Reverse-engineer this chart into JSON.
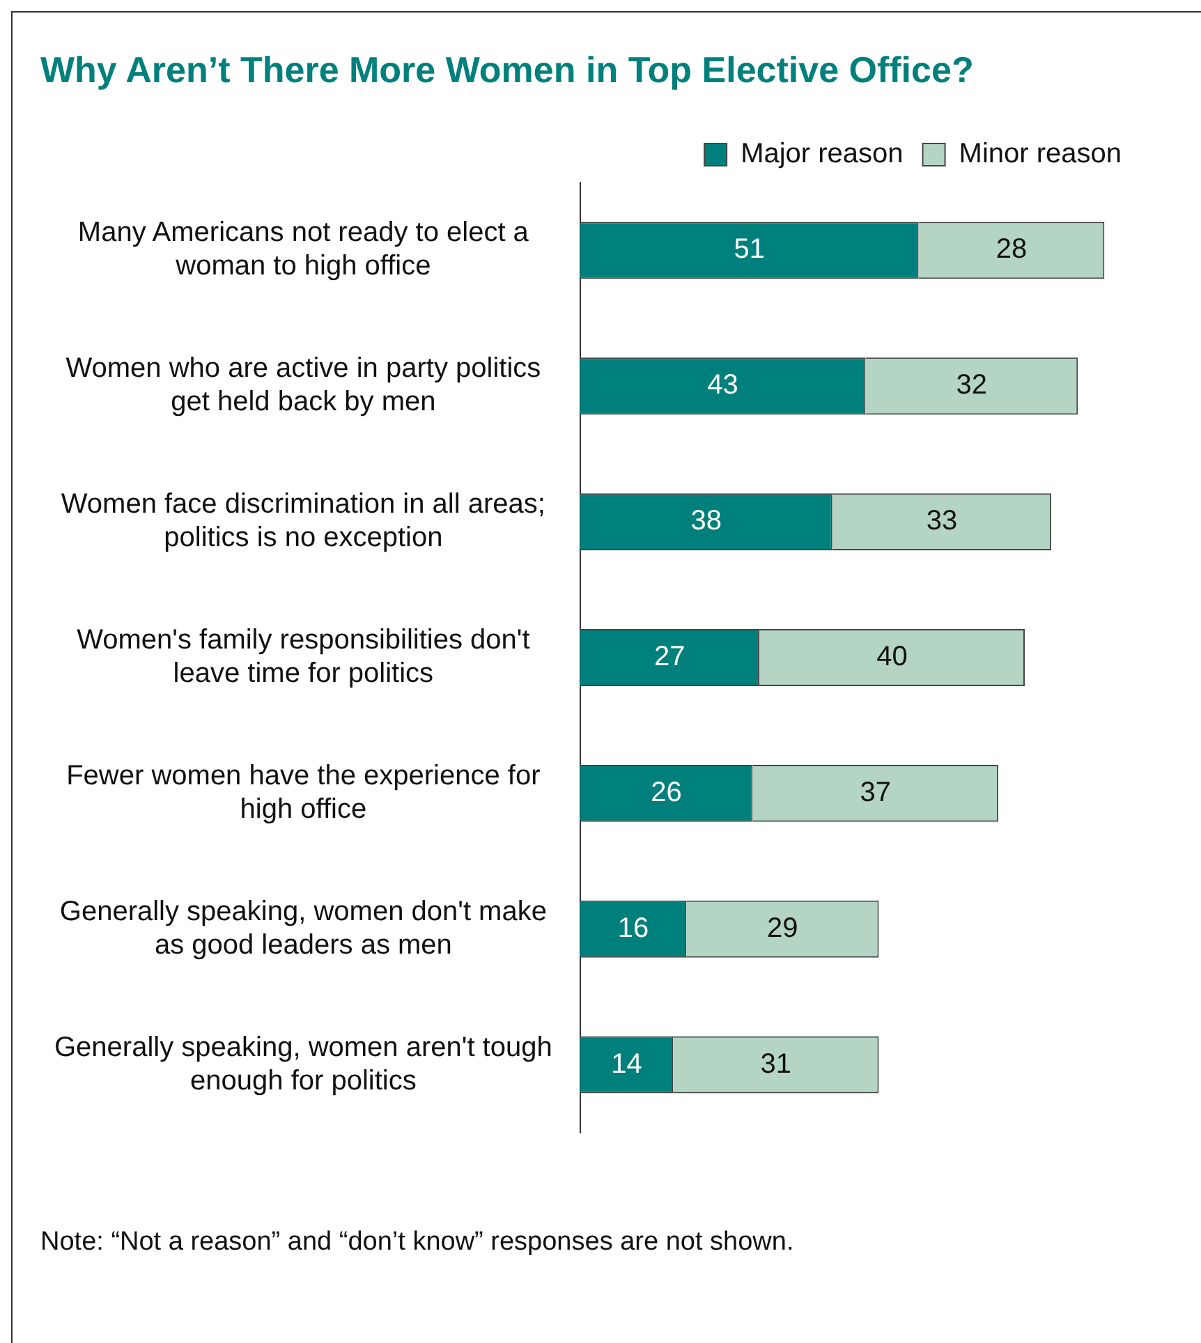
{
  "chart_data": {
    "type": "bar",
    "orientation": "horizontal",
    "stacked": true,
    "title": "Why Aren’t There More Women in Top Elective Office?",
    "categories": [
      "Many Americans not ready to elect a woman to high office",
      "Women who are active in party politics get held back by men",
      "Women face discrimination in all areas; politics is no exception",
      "Women's family responsibilities don't leave time for politics",
      "Fewer women have the experience for high office",
      "Generally speaking, women don't make as good leaders as men",
      "Generally speaking, women aren't tough enough for politics"
    ],
    "series": [
      {
        "name": "Major reason",
        "color": "#00807c",
        "values": [
          51,
          43,
          38,
          27,
          26,
          16,
          14
        ]
      },
      {
        "name": "Minor reason",
        "color": "#b5d5c4",
        "values": [
          28,
          32,
          33,
          40,
          37,
          29,
          31
        ]
      }
    ],
    "data_labels": true,
    "legend": "top right",
    "annotations": [
      "Note: “Not a reason” and “don’t know” responses are not shown."
    ]
  }
}
